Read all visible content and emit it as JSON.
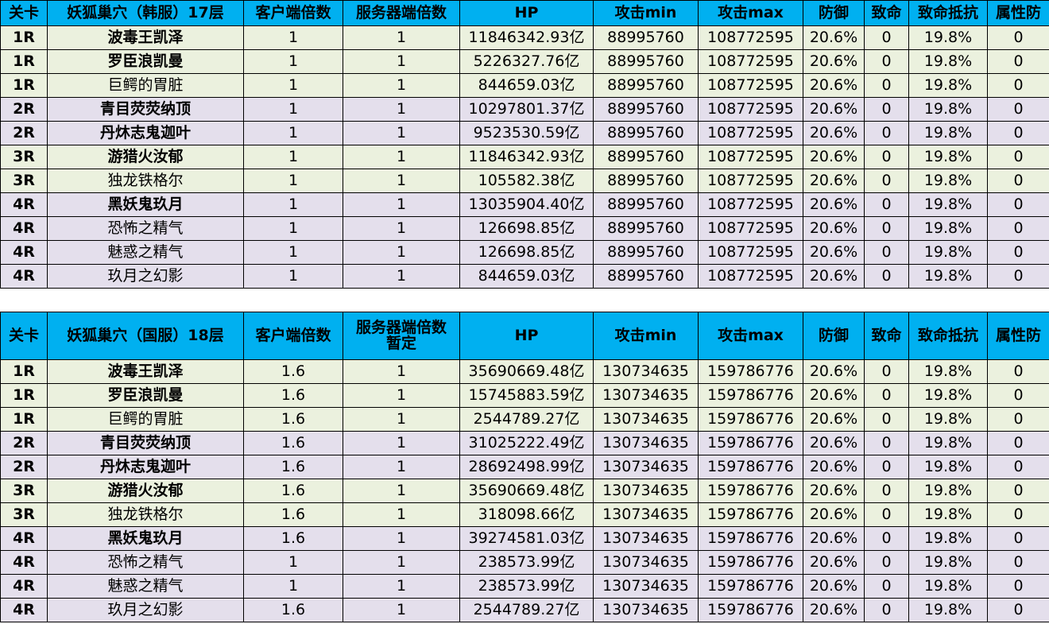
{
  "columns": [
    "关卡",
    "",
    "客户端倍数",
    "服务器端倍数",
    "HP",
    "攻击min",
    "攻击max",
    "防御",
    "致命",
    "致命抵抗",
    "属性防"
  ],
  "tables": [
    {
      "title": "妖狐巢穴（韩服）17层",
      "server_header": [
        "服务器端倍数"
      ],
      "rows": [
        {
          "stage": "1R",
          "name": "波毒王凯泽",
          "bold": true,
          "client": "1",
          "server": "1",
          "hp": "11846342.93亿",
          "atk_min": "88995760",
          "atk_max": "108772595",
          "def": "20.6%",
          "crit": "0",
          "crit_res": "19.8%",
          "attr_def": "0"
        },
        {
          "stage": "1R",
          "name": "罗臣浪凯曼",
          "bold": true,
          "client": "1",
          "server": "1",
          "hp": "5226327.76亿",
          "atk_min": "88995760",
          "atk_max": "108772595",
          "def": "20.6%",
          "crit": "0",
          "crit_res": "19.8%",
          "attr_def": "0"
        },
        {
          "stage": "1R",
          "name": "巨鳄的胃脏",
          "bold": false,
          "client": "1",
          "server": "1",
          "hp": "844659.03亿",
          "atk_min": "88995760",
          "atk_max": "108772595",
          "def": "20.6%",
          "crit": "0",
          "crit_res": "19.8%",
          "attr_def": "0"
        },
        {
          "stage": "2R",
          "name": "青目荧荧纳顶",
          "bold": true,
          "client": "1",
          "server": "1",
          "hp": "10297801.37亿",
          "atk_min": "88995760",
          "atk_max": "108772595",
          "def": "20.6%",
          "crit": "0",
          "crit_res": "19.8%",
          "attr_def": "0"
        },
        {
          "stage": "2R",
          "name": "丹炑志鬼迦叶",
          "bold": true,
          "client": "1",
          "server": "1",
          "hp": "9523530.59亿",
          "atk_min": "88995760",
          "atk_max": "108772595",
          "def": "20.6%",
          "crit": "0",
          "crit_res": "19.8%",
          "attr_def": "0"
        },
        {
          "stage": "3R",
          "name": "游猎火汝郁",
          "bold": true,
          "client": "1",
          "server": "1",
          "hp": "11846342.93亿",
          "atk_min": "88995760",
          "atk_max": "108772595",
          "def": "20.6%",
          "crit": "0",
          "crit_res": "19.8%",
          "attr_def": "0"
        },
        {
          "stage": "3R",
          "name": "独龙铁格尔",
          "bold": false,
          "client": "1",
          "server": "1",
          "hp": "105582.38亿",
          "atk_min": "88995760",
          "atk_max": "108772595",
          "def": "20.6%",
          "crit": "0",
          "crit_res": "19.8%",
          "attr_def": "0"
        },
        {
          "stage": "4R",
          "name": "黑妖鬼玖月",
          "bold": true,
          "client": "1",
          "server": "1",
          "hp": "13035904.40亿",
          "atk_min": "88995760",
          "atk_max": "108772595",
          "def": "20.6%",
          "crit": "0",
          "crit_res": "19.8%",
          "attr_def": "0"
        },
        {
          "stage": "4R",
          "name": "恐怖之精气",
          "bold": false,
          "client": "1",
          "server": "1",
          "hp": "126698.85亿",
          "atk_min": "88995760",
          "atk_max": "108772595",
          "def": "20.6%",
          "crit": "0",
          "crit_res": "19.8%",
          "attr_def": "0"
        },
        {
          "stage": "4R",
          "name": "魅惑之精气",
          "bold": false,
          "client": "1",
          "server": "1",
          "hp": "126698.85亿",
          "atk_min": "88995760",
          "atk_max": "108772595",
          "def": "20.6%",
          "crit": "0",
          "crit_res": "19.8%",
          "attr_def": "0"
        },
        {
          "stage": "4R",
          "name": "玖月之幻影",
          "bold": false,
          "client": "1",
          "server": "1",
          "hp": "844659.03亿",
          "atk_min": "88995760",
          "atk_max": "108772595",
          "def": "20.6%",
          "crit": "0",
          "crit_res": "19.8%",
          "attr_def": "0"
        }
      ]
    },
    {
      "title": "妖狐巢穴（国服）18层",
      "server_header": [
        "服务器端倍数",
        "暂定"
      ],
      "rows": [
        {
          "stage": "1R",
          "name": "波毒王凯泽",
          "bold": true,
          "client": "1.6",
          "server": "1",
          "hp": "35690669.48亿",
          "atk_min": "130734635",
          "atk_max": "159786776",
          "def": "20.6%",
          "crit": "0",
          "crit_res": "19.8%",
          "attr_def": "0"
        },
        {
          "stage": "1R",
          "name": "罗臣浪凯曼",
          "bold": true,
          "client": "1.6",
          "server": "1",
          "hp": "15745883.59亿",
          "atk_min": "130734635",
          "atk_max": "159786776",
          "def": "20.6%",
          "crit": "0",
          "crit_res": "19.8%",
          "attr_def": "0"
        },
        {
          "stage": "1R",
          "name": "巨鳄的胃脏",
          "bold": false,
          "client": "1.6",
          "server": "1",
          "hp": "2544789.27亿",
          "atk_min": "130734635",
          "atk_max": "159786776",
          "def": "20.6%",
          "crit": "0",
          "crit_res": "19.8%",
          "attr_def": "0"
        },
        {
          "stage": "2R",
          "name": "青目荧荧纳顶",
          "bold": true,
          "client": "1.6",
          "server": "1",
          "hp": "31025222.49亿",
          "atk_min": "130734635",
          "atk_max": "159786776",
          "def": "20.6%",
          "crit": "0",
          "crit_res": "19.8%",
          "attr_def": "0"
        },
        {
          "stage": "2R",
          "name": "丹炑志鬼迦叶",
          "bold": true,
          "client": "1.6",
          "server": "1",
          "hp": "28692498.99亿",
          "atk_min": "130734635",
          "atk_max": "159786776",
          "def": "20.6%",
          "crit": "0",
          "crit_res": "19.8%",
          "attr_def": "0"
        },
        {
          "stage": "3R",
          "name": "游猎火汝郁",
          "bold": true,
          "client": "1.6",
          "server": "1",
          "hp": "35690669.48亿",
          "atk_min": "130734635",
          "atk_max": "159786776",
          "def": "20.6%",
          "crit": "0",
          "crit_res": "19.8%",
          "attr_def": "0"
        },
        {
          "stage": "3R",
          "name": "独龙铁格尔",
          "bold": false,
          "client": "1.6",
          "server": "1",
          "hp": "318098.66亿",
          "atk_min": "130734635",
          "atk_max": "159786776",
          "def": "20.6%",
          "crit": "0",
          "crit_res": "19.8%",
          "attr_def": "0"
        },
        {
          "stage": "4R",
          "name": "黑妖鬼玖月",
          "bold": true,
          "client": "1.6",
          "server": "1",
          "hp": "39274581.03亿",
          "atk_min": "130734635",
          "atk_max": "159786776",
          "def": "20.6%",
          "crit": "0",
          "crit_res": "19.8%",
          "attr_def": "0"
        },
        {
          "stage": "4R",
          "name": "恐怖之精气",
          "bold": false,
          "client": "1",
          "server": "1",
          "hp": "238573.99亿",
          "atk_min": "130734635",
          "atk_max": "159786776",
          "def": "20.6%",
          "crit": "0",
          "crit_res": "19.8%",
          "attr_def": "0"
        },
        {
          "stage": "4R",
          "name": "魅惑之精气",
          "bold": false,
          "client": "1",
          "server": "1",
          "hp": "238573.99亿",
          "atk_min": "130734635",
          "atk_max": "159786776",
          "def": "20.6%",
          "crit": "0",
          "crit_res": "19.8%",
          "attr_def": "0"
        },
        {
          "stage": "4R",
          "name": "玖月之幻影",
          "bold": false,
          "client": "1.6",
          "server": "1",
          "hp": "2544789.27亿",
          "atk_min": "130734635",
          "atk_max": "159786776",
          "def": "20.6%",
          "crit": "0",
          "crit_res": "19.8%",
          "attr_def": "0"
        }
      ]
    }
  ]
}
